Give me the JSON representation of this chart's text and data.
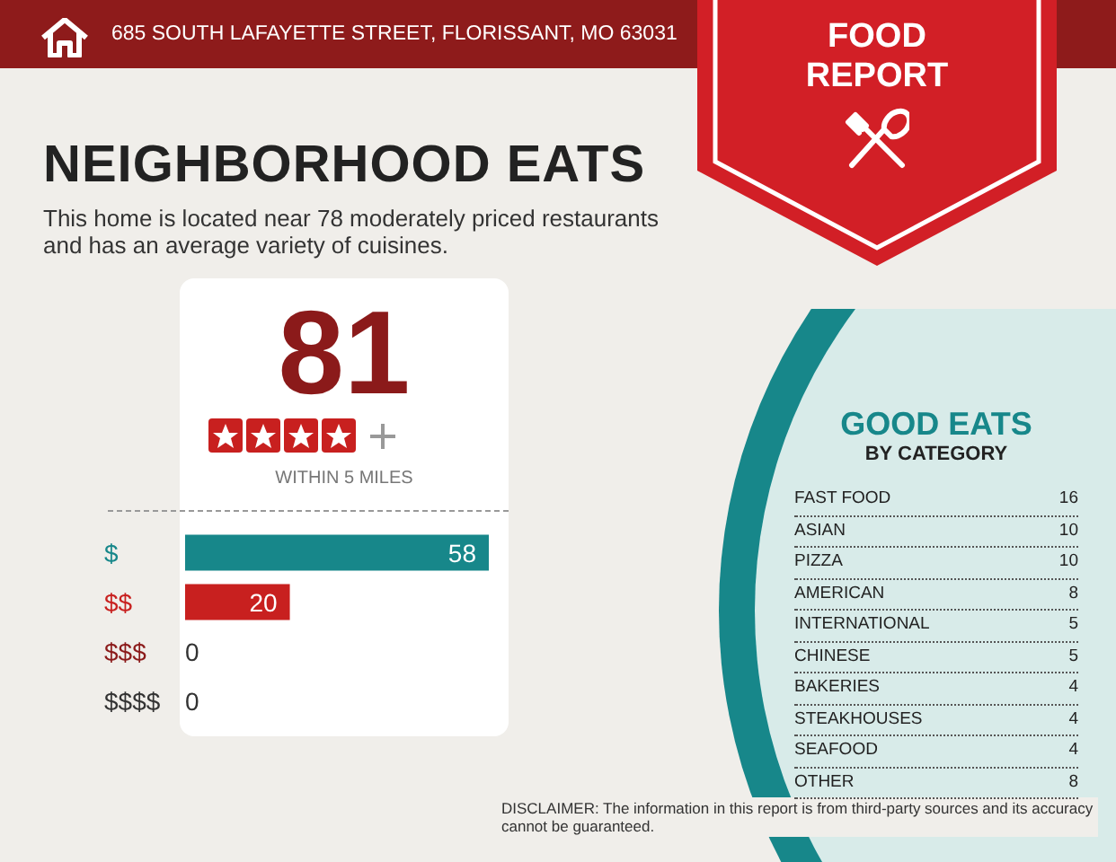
{
  "chart_data": [
    {
      "type": "bar",
      "orientation": "horizontal",
      "title": "NEIGHBORHOOD EATS",
      "subtitle": "This home is located near 78 moderately priced restaurants and has an average variety of cuisines.",
      "categories": [
        "$",
        "$$",
        "$$$",
        "$$$$"
      ],
      "values": [
        58,
        20,
        0,
        0
      ],
      "colors": [
        "#17878a",
        "#c8201f",
        "#8b1a1a",
        "#333333"
      ],
      "data_labels": true,
      "annotations": [
        "685 SOUTH LAFAYETTE STREET, FLORISSANT, MO 63031",
        "FOOD REPORT",
        "81",
        "WITHIN 5 MILES",
        "DISCLAIMER: The information in this report is from third-party sources and its accuracy cannot be guaranteed."
      ]
    },
    {
      "type": "other",
      "title": "GOOD EATS",
      "subtitle": "BY CATEGORY",
      "categories": [
        "FAST FOOD",
        "ASIAN",
        "PIZZA",
        "AMERICAN",
        "INTERNATIONAL",
        "CHINESE",
        "BAKERIES",
        "STEAKHOUSES",
        "SEAFOOD",
        "OTHER"
      ],
      "values": [
        16,
        10,
        10,
        8,
        5,
        5,
        4,
        4,
        4,
        8
      ],
      "data_labels": true
    }
  ]
}
